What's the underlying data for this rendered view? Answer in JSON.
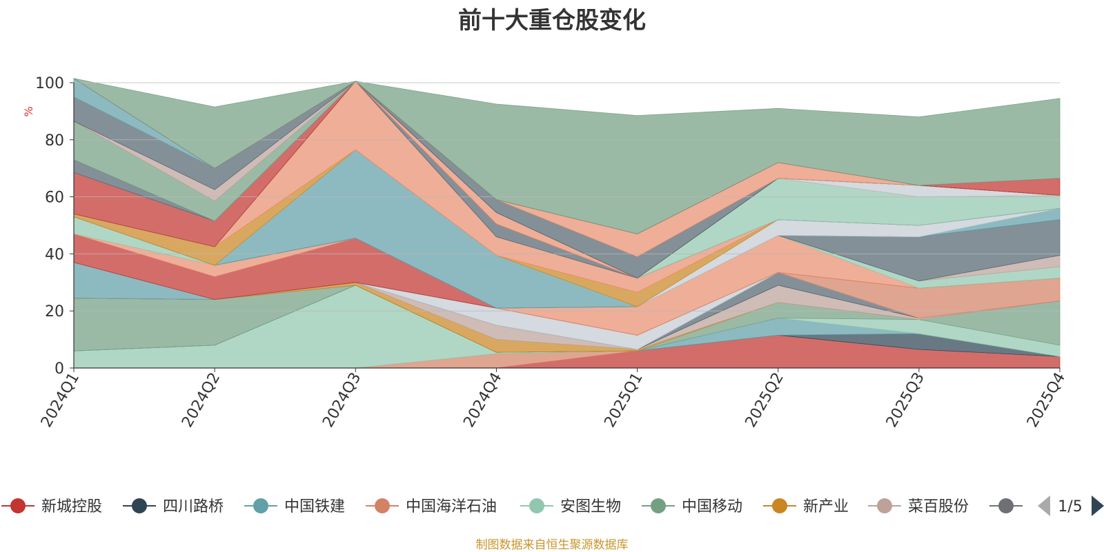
{
  "chart_data": {
    "type": "area",
    "title": "前十大重仓股变化",
    "ylabel": "%",
    "ylim": [
      0,
      100
    ],
    "yticks": [
      0,
      20,
      40,
      60,
      80,
      100
    ],
    "categories": [
      "2024Q1",
      "2024Q2",
      "2024Q3",
      "2024Q4",
      "2025Q1",
      "2025Q2",
      "2025Q3",
      "2025Q4"
    ],
    "grid": true,
    "legend_position": "bottom",
    "legend_page": "1/5",
    "series": [
      {
        "name": "新城控股",
        "color": "#c23531",
        "values": [
          0,
          0,
          0,
          0,
          6,
          11.5,
          6.5,
          4
        ]
      },
      {
        "name": "",
        "color": "#d48265",
        "values": [
          0,
          0,
          0,
          5,
          0,
          0,
          0,
          0
        ]
      },
      {
        "name": "安图生物",
        "color": "#91c7ae",
        "values": [
          6,
          8,
          29,
          0.5,
          0,
          0,
          0,
          0
        ]
      },
      {
        "name": "",
        "color": "#e98f6f",
        "values": [
          0,
          0,
          0,
          0,
          0,
          0,
          0,
          0
        ]
      },
      {
        "name": "四川路桥",
        "color": "#2f4554",
        "values": [
          0,
          0,
          0,
          0,
          0,
          0,
          5.5,
          0
        ]
      },
      {
        "name": "中国铁建",
        "color": "#61a0a8",
        "values": [
          0,
          0,
          0,
          0,
          0,
          6,
          0,
          0
        ]
      },
      {
        "name": "",
        "color": "#91c7ae",
        "values": [
          0,
          0,
          0,
          0,
          0,
          0,
          5,
          4
        ]
      },
      {
        "name": "中国移动",
        "color": "#749f83",
        "values": [
          18.5,
          16,
          0,
          0,
          0,
          5.5,
          0,
          15.5
        ]
      },
      {
        "name": "新产业",
        "color": "#ca8622",
        "values": [
          0,
          0,
          1,
          4.5,
          0.5,
          0,
          0,
          0
        ]
      },
      {
        "name": "菜百股份",
        "color": "#bda29a",
        "values": [
          0,
          0,
          0,
          5,
          0,
          6,
          0.5,
          0
        ]
      },
      {
        "name": "",
        "color": "#6e7074",
        "values": [
          0,
          0,
          0,
          0,
          0,
          0,
          0,
          0
        ]
      },
      {
        "name": "",
        "color": "#546570",
        "values": [
          0,
          0,
          0,
          0,
          0,
          4.5,
          0,
          0
        ]
      },
      {
        "name": "",
        "color": "#c4ccd3",
        "values": [
          0,
          0,
          0,
          6,
          5,
          0,
          0,
          0
        ]
      },
      {
        "name": "",
        "color": "#d48265",
        "values": [
          0,
          0,
          0,
          0,
          0,
          0,
          10.5,
          8
        ]
      },
      {
        "name": "",
        "color": "#61a0a8",
        "values": [
          12.5,
          0,
          0,
          0,
          0,
          0,
          0,
          0
        ]
      },
      {
        "name": "",
        "color": "#c23531",
        "values": [
          10,
          8,
          15.5,
          0,
          0,
          0,
          0,
          0
        ]
      },
      {
        "name": "",
        "color": "#e98f6f",
        "values": [
          0,
          4,
          0,
          0,
          10,
          13,
          0,
          0
        ]
      },
      {
        "name": "",
        "color": "#91c7ae",
        "values": [
          6,
          0,
          0,
          0,
          0,
          0,
          2.5,
          4
        ]
      },
      {
        "name": "",
        "color": "#bda29a",
        "values": [
          0,
          0,
          0,
          0,
          0,
          0,
          0,
          4
        ]
      },
      {
        "name": "",
        "color": "#546570",
        "values": [
          0,
          0,
          0,
          0,
          0,
          0,
          15.5,
          12.5
        ]
      },
      {
        "name": "",
        "color": "#61a0a8",
        "values": [
          0,
          0,
          31,
          18.5,
          0,
          0,
          0,
          4
        ]
      },
      {
        "name": "",
        "color": "#c4ccd3",
        "values": [
          0,
          0,
          0,
          0,
          0,
          5.5,
          4,
          0
        ]
      },
      {
        "name": "",
        "color": "#ca8622",
        "values": [
          1,
          6.5,
          0,
          0,
          5,
          0,
          0,
          0
        ]
      },
      {
        "name": "",
        "color": "#e98f6f",
        "values": [
          0,
          0,
          24,
          6.5,
          5,
          0,
          0,
          0
        ]
      },
      {
        "name": "",
        "color": "#546570",
        "values": [
          0,
          0,
          0,
          4.5,
          0,
          0,
          0,
          0
        ]
      },
      {
        "name": "",
        "color": "#91c7ae",
        "values": [
          0,
          0,
          0,
          0,
          0,
          14.5,
          10,
          4.5
        ]
      },
      {
        "name": "",
        "color": "#c23531",
        "values": [
          14.5,
          9,
          0,
          0,
          0,
          0,
          0,
          0
        ]
      },
      {
        "name": "",
        "color": "#e98f6f",
        "values": [
          0,
          0,
          0,
          4,
          0,
          0,
          0,
          0
        ]
      },
      {
        "name": "",
        "color": "#c4ccd3",
        "values": [
          0,
          0,
          0,
          0,
          0,
          0,
          4,
          0
        ]
      },
      {
        "name": "",
        "color": "#d48265",
        "values": [
          0,
          0,
          0,
          0,
          0,
          0,
          0,
          0
        ]
      },
      {
        "name": "",
        "color": "#546570",
        "values": [
          4.5,
          0,
          0,
          0,
          0,
          0,
          0,
          0
        ]
      },
      {
        "name": "",
        "color": "#749f83",
        "values": [
          13.5,
          7,
          0,
          0,
          0,
          0,
          0,
          0
        ]
      },
      {
        "name": "",
        "color": "#bda29a",
        "values": [
          0,
          4,
          0,
          0,
          0,
          0,
          0,
          0
        ]
      },
      {
        "name": "",
        "color": "#546570",
        "values": [
          8.5,
          7.5,
          0,
          4.5,
          7.5,
          0,
          0,
          0
        ]
      },
      {
        "name": "",
        "color": "#e98f6f",
        "values": [
          0,
          0,
          0,
          0,
          8,
          5.5,
          0,
          0
        ]
      },
      {
        "name": "",
        "color": "#61a0a8",
        "values": [
          6.5,
          0,
          0,
          0,
          0,
          0,
          0,
          0
        ]
      },
      {
        "name": "",
        "color": "#c23531",
        "values": [
          0,
          0,
          0,
          0,
          0,
          0,
          0,
          6
        ]
      },
      {
        "name": "",
        "color": "#749f83",
        "values": [
          0,
          21.5,
          0,
          33.5,
          41.5,
          19,
          24,
          28
        ]
      }
    ],
    "legend": [
      {
        "name": "新城控股",
        "color": "#c23531"
      },
      {
        "name": "四川路桥",
        "color": "#2f4554"
      },
      {
        "name": "中国铁建",
        "color": "#61a0a8"
      },
      {
        "name": "中国海洋石油",
        "color": "#d48265"
      },
      {
        "name": "安图生物",
        "color": "#91c7ae"
      },
      {
        "name": "中国移动",
        "color": "#749f83"
      },
      {
        "name": "新产业",
        "color": "#ca8622"
      },
      {
        "name": "菜百股份",
        "color": "#bda29a"
      },
      {
        "name": "",
        "color": "#6e7074"
      }
    ]
  },
  "footer": "制图数据来自恒生聚源数据库"
}
